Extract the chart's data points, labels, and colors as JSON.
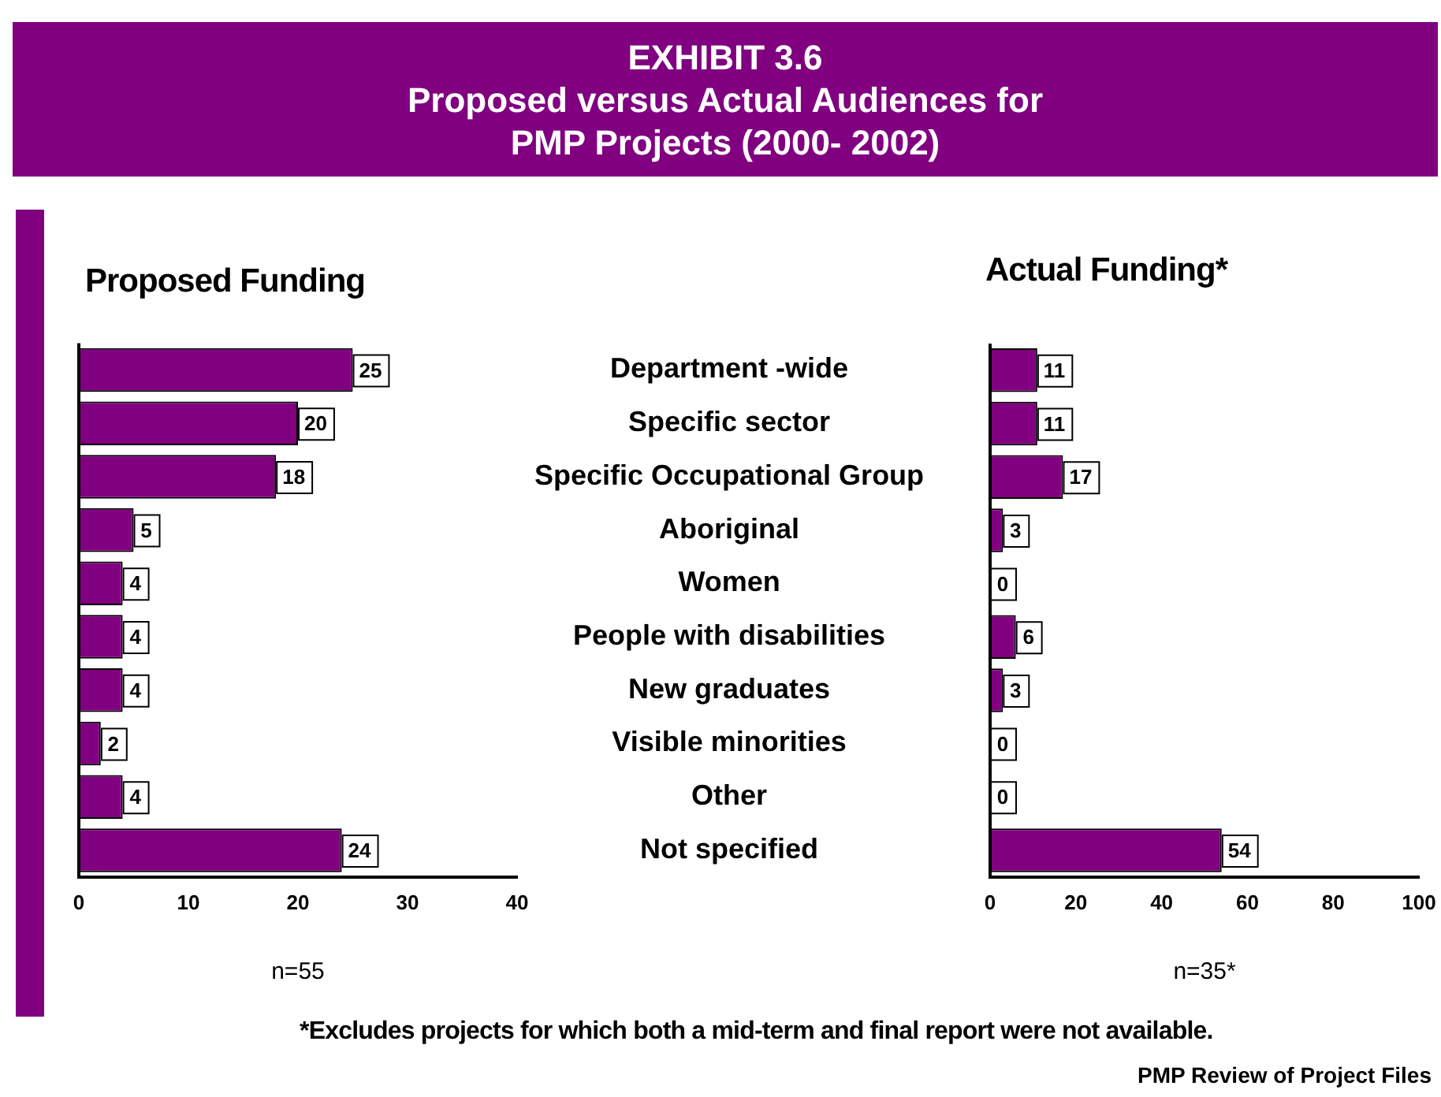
{
  "chart_data": [
    {
      "type": "bar",
      "orientation": "horizontal",
      "title": "EXHIBIT 3.6\nProposed versus Actual Audiences for\nPMP Projects (2000- 2002)",
      "subtitle": "Proposed Funding",
      "categories": [
        "Department -wide",
        "Specific sector",
        "Specific Occupational Group",
        "Aboriginal",
        "Women",
        "People with disabilities",
        "New graduates",
        "Visible minorities",
        "Other",
        "Not specified"
      ],
      "values": [
        25,
        20,
        18,
        5,
        4,
        4,
        4,
        2,
        4,
        24
      ],
      "color": "#800080",
      "xlim": [
        0,
        40
      ],
      "xticks": [
        0,
        10,
        20,
        30,
        40
      ],
      "grid": false,
      "legend": false,
      "data_labels": true,
      "annotations": [
        "n=55"
      ]
    },
    {
      "type": "bar",
      "orientation": "horizontal",
      "title": "Actual Funding*",
      "categories": [
        null,
        null,
        null,
        null,
        null,
        null,
        null,
        null,
        null,
        null
      ],
      "values": [
        11,
        11,
        17,
        3,
        0,
        6,
        3,
        0,
        0,
        54
      ],
      "color": "#800080",
      "xlim": [
        0,
        100
      ],
      "xticks": [
        0,
        20,
        40,
        60,
        80,
        100
      ],
      "grid": false,
      "legend": false,
      "data_labels": true,
      "tick_labels": "x",
      "annotations": [
        "n=35*",
        "*Excludes projects for which both a mid-term and final report were not available.",
        "PMP Review of Project Files"
      ]
    }
  ]
}
